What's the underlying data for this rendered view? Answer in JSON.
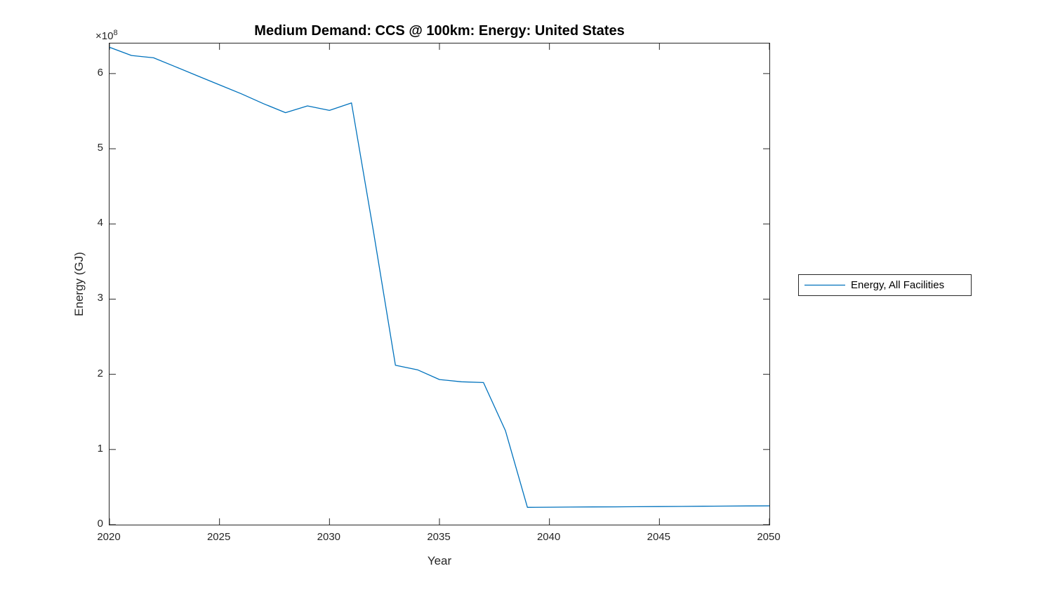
{
  "figure": {
    "background": "#ffffff",
    "axis_color": "#262626"
  },
  "chart_data": {
    "type": "line",
    "title": "Medium Demand: CCS @ 100km: Energy: United States",
    "xlabel": "Year",
    "ylabel": "Energy (GJ)",
    "y_offset_label": {
      "base": "×10",
      "exp": "8"
    },
    "xlim": [
      2020,
      2050
    ],
    "ylim": [
      0,
      640000000
    ],
    "x_ticks": [
      2020,
      2025,
      2030,
      2035,
      2040,
      2045,
      2050
    ],
    "y_ticks": [
      0,
      1,
      2,
      3,
      4,
      5,
      6
    ],
    "y_tick_scale": 100000000,
    "grid": false,
    "legend_position": "right-outside",
    "series": [
      {
        "name": "Energy, All Facilities",
        "color": "#0072BD",
        "x": [
          2020,
          2021,
          2022,
          2023,
          2024,
          2025,
          2026,
          2027,
          2028,
          2029,
          2030,
          2031,
          2032,
          2033,
          2034,
          2035,
          2036,
          2037,
          2038,
          2039,
          2040,
          2041,
          2042,
          2043,
          2044,
          2045,
          2046,
          2047,
          2048,
          2049,
          2050
        ],
        "y": [
          635000000,
          624000000,
          621000000,
          609000000,
          597000000,
          585000000,
          573000000,
          560000000,
          548000000,
          557000000,
          551000000,
          561000000,
          390000000,
          212000000,
          206000000,
          193000000,
          190000000,
          189000000,
          125000000,
          23000000,
          23200000,
          23400000,
          23600000,
          23700000,
          23900000,
          24100000,
          24300000,
          24500000,
          24700000,
          24900000,
          25000000
        ]
      }
    ]
  }
}
